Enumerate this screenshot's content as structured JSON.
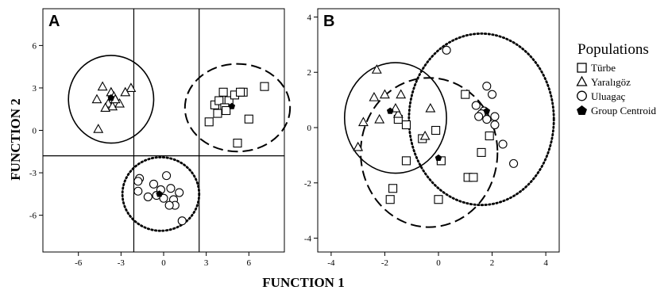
{
  "figure": {
    "xlabel": "FUNCTION 1",
    "ylabel": "FUNCTION 2"
  },
  "legend": {
    "title": "Populations",
    "items": [
      {
        "label": "Türbe",
        "marker": "square"
      },
      {
        "label": "Yaralıgöz",
        "marker": "triangle"
      },
      {
        "label": "Uluagaç",
        "marker": "circle"
      },
      {
        "label": "Group Centroid",
        "marker": "pentagon"
      }
    ]
  },
  "chart_data": [
    {
      "panel": "A",
      "type": "scatter",
      "xlim": [
        -8.5,
        8.5
      ],
      "ylim": [
        -8.6,
        8.6
      ],
      "xticks": [
        -6,
        -3,
        0,
        3,
        6
      ],
      "yticks": [
        6,
        3,
        0,
        -3,
        -6
      ],
      "xtick_labels": [
        "-6",
        "-3",
        "0",
        "3",
        "6"
      ],
      "ytick_labels": [
        "6",
        "3",
        "0",
        "-3",
        "-6"
      ],
      "grid": false,
      "dividers": {
        "x": [
          -2.1,
          2.5
        ],
        "y": [
          -1.8
        ]
      },
      "series": [
        {
          "name": "Türbe",
          "marker": "square",
          "points": [
            [
              3.6,
              1.8
            ],
            [
              4.6,
              2.1
            ],
            [
              5.0,
              2.5
            ],
            [
              5.6,
              2.7
            ],
            [
              5.4,
              2.7
            ],
            [
              4.2,
              2.7
            ],
            [
              3.9,
              2.1
            ],
            [
              4.3,
              1.6
            ],
            [
              7.1,
              3.1
            ],
            [
              3.8,
              1.2
            ],
            [
              4.4,
              1.4
            ],
            [
              3.2,
              0.6
            ],
            [
              6.0,
              0.8
            ],
            [
              5.2,
              -0.9
            ]
          ]
        },
        {
          "name": "Yaralıgöz",
          "marker": "triangle",
          "points": [
            [
              -4.3,
              3.1
            ],
            [
              -3.7,
              2.7
            ],
            [
              -3.5,
              2.4
            ],
            [
              -2.3,
              3.0
            ],
            [
              -2.7,
              2.7
            ],
            [
              -3.9,
              1.9
            ],
            [
              -3.6,
              1.7
            ],
            [
              -4.1,
              1.6
            ],
            [
              -4.7,
              2.2
            ],
            [
              -3.1,
              1.9
            ],
            [
              -4.6,
              0.1
            ],
            [
              -3.4,
              2.2
            ]
          ]
        },
        {
          "name": "Uluagaç",
          "marker": "circle",
          "points": [
            [
              -1.7,
              -3.4
            ],
            [
              -1.8,
              -3.6
            ],
            [
              -1.8,
              -4.3
            ],
            [
              -1.1,
              -4.7
            ],
            [
              -0.7,
              -3.8
            ],
            [
              -0.5,
              -4.6
            ],
            [
              -0.2,
              -4.2
            ],
            [
              0.2,
              -3.2
            ],
            [
              0.5,
              -4.1
            ],
            [
              0.7,
              -4.9
            ],
            [
              0.8,
              -5.3
            ],
            [
              1.1,
              -4.4
            ],
            [
              0.4,
              -5.3
            ],
            [
              0.0,
              -4.8
            ],
            [
              1.3,
              -6.4
            ]
          ]
        },
        {
          "name": "Group Centroid",
          "marker": "pentagon",
          "points": [
            [
              -3.7,
              2.3
            ],
            [
              4.8,
              1.7
            ],
            [
              -0.3,
              -4.5
            ]
          ]
        }
      ],
      "ellipses": [
        {
          "group": "Yaralıgöz",
          "style": "solid",
          "cx": -3.7,
          "cy": 2.2,
          "rx": 3.0,
          "ry": 3.1
        },
        {
          "group": "Türbe",
          "style": "dashed",
          "cx": 5.2,
          "cy": 1.6,
          "rx": 3.7,
          "ry": 3.1
        },
        {
          "group": "Uluagaç",
          "style": "dotted",
          "cx": -0.2,
          "cy": -4.5,
          "rx": 2.7,
          "ry": 2.6
        }
      ]
    },
    {
      "panel": "B",
      "type": "scatter",
      "xlim": [
        -4.5,
        4.5
      ],
      "ylim": [
        -4.5,
        4.3
      ],
      "xticks": [
        -4,
        -2,
        0,
        2,
        4
      ],
      "yticks": [
        4,
        2,
        0,
        -2,
        -4
      ],
      "xtick_labels": [
        "-4",
        "-2",
        "0",
        "2",
        "4"
      ],
      "ytick_labels": [
        "4",
        "2",
        "0",
        "-2",
        "-4"
      ],
      "grid": false,
      "series": [
        {
          "name": "Türbe",
          "marker": "square",
          "points": [
            [
              -1.5,
              0.3
            ],
            [
              -0.6,
              -0.4
            ],
            [
              -1.2,
              -1.2
            ],
            [
              -1.2,
              0.1
            ],
            [
              -0.1,
              -0.1
            ],
            [
              -1.7,
              -2.2
            ],
            [
              -1.8,
              -2.6
            ],
            [
              0.0,
              -2.6
            ],
            [
              0.1,
              -1.2
            ],
            [
              1.0,
              1.2
            ],
            [
              1.1,
              -1.8
            ],
            [
              1.3,
              -1.8
            ],
            [
              1.6,
              -0.9
            ],
            [
              1.9,
              -0.3
            ]
          ]
        },
        {
          "name": "Yaralıgöz",
          "marker": "triangle",
          "points": [
            [
              -2.3,
              2.1
            ],
            [
              -2.4,
              1.1
            ],
            [
              -2.0,
              1.2
            ],
            [
              -1.4,
              1.2
            ],
            [
              -1.5,
              0.5
            ],
            [
              -0.3,
              0.7
            ],
            [
              -2.8,
              0.2
            ],
            [
              -2.2,
              0.3
            ],
            [
              -3.0,
              -0.7
            ],
            [
              -0.5,
              -0.3
            ],
            [
              -1.6,
              0.7
            ]
          ]
        },
        {
          "name": "Uluagaç",
          "marker": "circle",
          "points": [
            [
              0.3,
              2.8
            ],
            [
              1.4,
              0.8
            ],
            [
              1.8,
              1.5
            ],
            [
              2.0,
              1.2
            ],
            [
              1.7,
              0.6
            ],
            [
              1.6,
              0.5
            ],
            [
              1.5,
              0.4
            ],
            [
              1.8,
              0.3
            ],
            [
              2.1,
              0.4
            ],
            [
              2.1,
              0.1
            ],
            [
              2.4,
              -0.6
            ],
            [
              2.8,
              -1.3
            ]
          ]
        },
        {
          "name": "Group Centroid",
          "marker": "pentagon",
          "points": [
            [
              -1.8,
              0.6
            ],
            [
              0.0,
              -1.1
            ],
            [
              1.8,
              0.6
            ]
          ]
        }
      ],
      "ellipses": [
        {
          "group": "Yaralıgöz",
          "style": "solid",
          "cx": -1.6,
          "cy": 0.35,
          "rx": 1.9,
          "ry": 2.0
        },
        {
          "group": "Türbe",
          "style": "dashed",
          "cx": -0.35,
          "cy": -0.9,
          "rx": 2.55,
          "ry": 2.7
        },
        {
          "group": "Uluagaç",
          "style": "dotted",
          "cx": 1.6,
          "cy": 0.3,
          "rx": 2.7,
          "ry": 3.1
        }
      ]
    }
  ],
  "panels": [
    {
      "letter": "A"
    },
    {
      "letter": "B"
    }
  ]
}
